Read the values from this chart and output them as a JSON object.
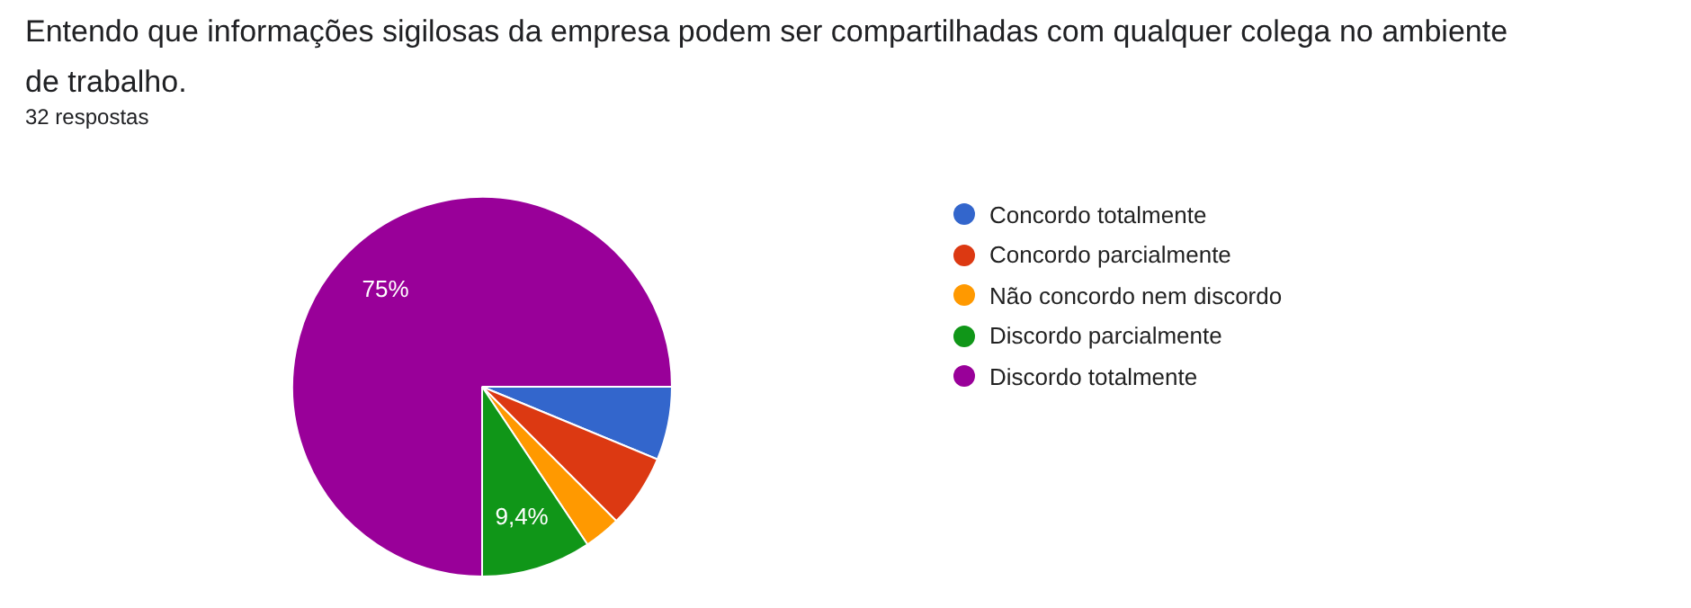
{
  "chart_data": {
    "type": "pie",
    "title": "Entendo que informações sigilosas da empresa podem ser compartilhadas com qualquer colega no ambiente de trabalho.",
    "subtitle": "32 respostas",
    "categories": [
      "Concordo totalmente",
      "Concordo parcialmente",
      "Não concordo nem discordo",
      "Discordo parcialmente",
      "Discordo totalmente"
    ],
    "values": [
      6.25,
      6.25,
      3.125,
      9.375,
      75
    ],
    "colors": [
      "#3366cc",
      "#dc3912",
      "#ff9900",
      "#109618",
      "#990099"
    ],
    "value_labels": [
      null,
      null,
      null,
      "9,4%",
      "75%"
    ],
    "legend": "right"
  }
}
